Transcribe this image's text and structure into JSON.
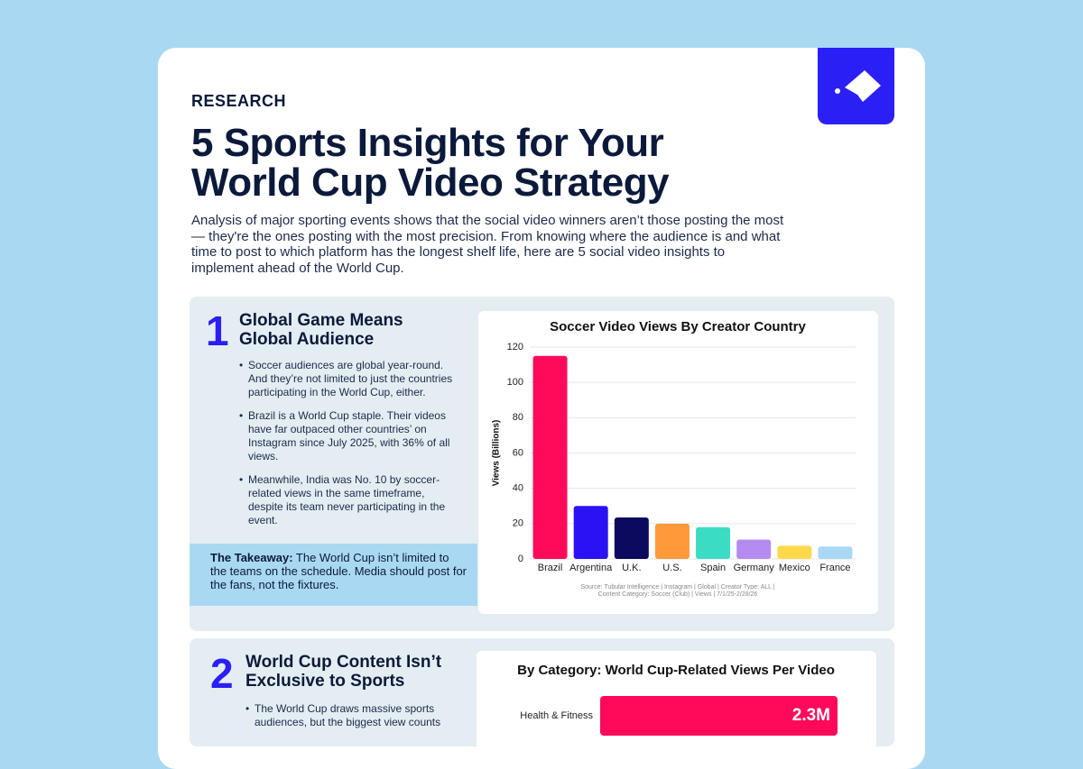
{
  "header": {
    "label": "RESEARCH",
    "title": [
      "5 Sports Insights for Your",
      "World Cup Video Strategy"
    ],
    "intro": "Analysis of major sporting events shows that the social video winners aren’t those posting the most — they're the ones posting with the most precision. From knowing where the audience is and what time to post to which platform has the longest shelf life, here are 5 social video insights to implement ahead of the World Cup."
  },
  "sections": [
    {
      "number": "1",
      "heading": [
        "Global Game Means",
        "Global Audience"
      ],
      "bullets": [
        "Soccer audiences are global year-round. And they’re not limited to just the countries participating in the World Cup, either.",
        "Brazil is a World Cup staple. Their videos have far outpaced other countries’ on Instagram since July 2025, with 36% of all views.",
        "Meanwhile, India was No. 10 by soccer-related views in the same timeframe, despite its team never participating in the event."
      ],
      "takeaway_label": "The Takeaway:",
      "takeaway": "The World Cup isn’t limited to the teams on the schedule. Media should post for the fans, not the fixtures."
    },
    {
      "number": "2",
      "heading": [
        "World Cup Content Isn’t",
        "Exclusive to Sports"
      ],
      "bullets": [
        "The World Cup draws massive sports audiences, but the biggest view counts"
      ]
    }
  ],
  "chart_data": [
    {
      "type": "bar",
      "title": "Soccer Video Views By Creator Country",
      "y_label": "Views (Billions)",
      "categories": [
        "Brazil",
        "Argentina",
        "U.K.",
        "U.S.",
        "Spain",
        "Germany",
        "Mexico",
        "France"
      ],
      "values": [
        115,
        30,
        23.5,
        20,
        18,
        11,
        7.5,
        7
      ],
      "colors": [
        "#ff0a5a",
        "#2a12f5",
        "#0b0a5e",
        "#ff9a3a",
        "#3cdcc4",
        "#b48cf0",
        "#ffd94a",
        "#a8d8f4"
      ],
      "ylim": [
        0,
        120
      ],
      "yticks": [
        0,
        20,
        40,
        60,
        80,
        100,
        120
      ],
      "grid": true,
      "source": [
        "Source: Tubular Intelligence | Instagram | Global | Creator Type: ALL |",
        "Content Category: Soccer (Club) | Views | 7/1/25-2/28/26"
      ]
    },
    {
      "type": "hbar",
      "title": "By Category: World Cup-Related Views Per Video",
      "categories": [
        "Health & Fitness"
      ],
      "values": [
        2300000
      ],
      "value_labels": [
        "2.3M"
      ],
      "color": "#ff0a5a"
    }
  ]
}
